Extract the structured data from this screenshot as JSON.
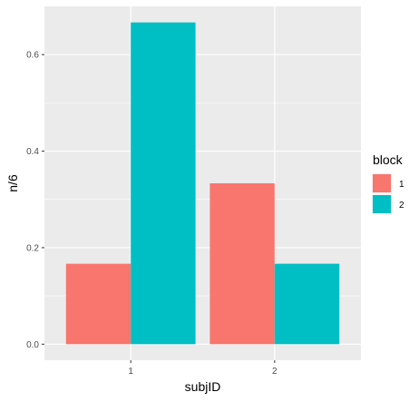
{
  "chart_data": {
    "type": "bar",
    "title": "",
    "xlabel": "subjID",
    "ylabel": "n/6",
    "categories": [
      "1",
      "2"
    ],
    "series": [
      {
        "name": "1",
        "values": [
          0.1667,
          0.3333
        ]
      },
      {
        "name": "2",
        "values": [
          0.6667,
          0.1667
        ]
      }
    ],
    "ylim": [
      -0.0333,
      0.7
    ],
    "yticks": [
      0.0,
      0.2,
      0.4,
      0.6
    ],
    "ytick_labels": [
      "0.0",
      "0.2",
      "0.4",
      "0.6"
    ],
    "grid": true,
    "legend": {
      "title": "block",
      "placement": "right"
    },
    "colors": {
      "1": "#F8766D",
      "2": "#00BFC4",
      "panel": "#EBEBEB",
      "grid": "#FFFFFF"
    }
  }
}
